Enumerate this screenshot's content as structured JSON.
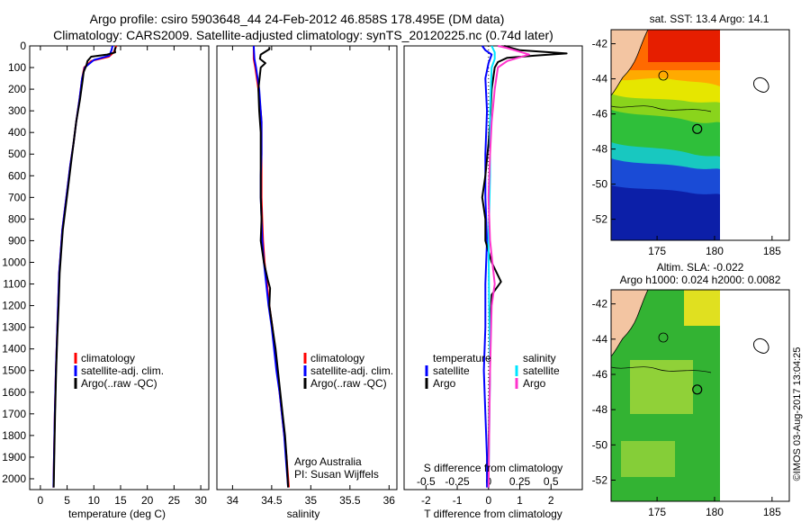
{
  "header": {
    "line1": "Argo profile: csiro 5903648_44 24-Feb-2012 46.858S 178.495E (DM data)",
    "line2": "Climatology: CARS2009. Satellite-adjusted climatology: synTS_20120225.nc (0.74d later)"
  },
  "footer": {
    "credit1": "Argo Australia",
    "credit2": "PI: Susan Wijffels",
    "stamp": "©IMOS 03-Aug-2017 13:04:25"
  },
  "colors": {
    "climatology": "#ff0000",
    "satellite": "#0000ff",
    "argo": "#000000",
    "sal_satellite": "#00e5ff",
    "sal_argo": "#ff33cc"
  },
  "chart_data": [
    {
      "id": "temp",
      "type": "line",
      "xlabel": "temperature (deg C)",
      "ylabel": "",
      "xlim": [
        -2,
        31.5
      ],
      "ylim": [
        2050,
        0
      ],
      "xticks": [
        0,
        5,
        10,
        15,
        20,
        25,
        30
      ],
      "yticks": [
        0,
        100,
        200,
        300,
        400,
        500,
        600,
        700,
        800,
        900,
        1000,
        1100,
        1200,
        1300,
        1400,
        1500,
        1600,
        1700,
        1800,
        1900,
        2000
      ],
      "legend": [
        "climatology",
        "satellite-adj. clim.",
        "Argo(..raw -QC)"
      ],
      "legend_position": "lower-center",
      "series": [
        {
          "name": "climatology",
          "color_key": "climatology",
          "points": [
            [
              14.2,
              0
            ],
            [
              13.7,
              30
            ],
            [
              12.8,
              50
            ],
            [
              9.5,
              70
            ],
            [
              8.2,
              100
            ],
            [
              7.8,
              150
            ],
            [
              7.3,
              250
            ],
            [
              6.7,
              350
            ],
            [
              6.2,
              450
            ],
            [
              5.6,
              550
            ],
            [
              5.1,
              650
            ],
            [
              4.6,
              750
            ],
            [
              4.1,
              850
            ],
            [
              3.8,
              950
            ],
            [
              3.5,
              1050
            ],
            [
              3.3,
              1200
            ],
            [
              3.1,
              1350
            ],
            [
              2.9,
              1500
            ],
            [
              2.7,
              1700
            ],
            [
              2.55,
              1900
            ],
            [
              2.45,
              2040
            ]
          ]
        },
        {
          "name": "satellite-adj. clim.",
          "color_key": "satellite",
          "points": [
            [
              13.5,
              0
            ],
            [
              13.3,
              20
            ],
            [
              12.9,
              45
            ],
            [
              10,
              65
            ],
            [
              8.3,
              100
            ],
            [
              7.8,
              150
            ],
            [
              7.3,
              250
            ],
            [
              6.7,
              350
            ],
            [
              6.2,
              450
            ],
            [
              5.6,
              550
            ],
            [
              5.1,
              650
            ],
            [
              4.6,
              750
            ],
            [
              4.1,
              850
            ],
            [
              3.8,
              950
            ],
            [
              3.5,
              1050
            ],
            [
              3.3,
              1200
            ],
            [
              3.1,
              1350
            ],
            [
              2.9,
              1500
            ],
            [
              2.7,
              1700
            ],
            [
              2.55,
              1900
            ],
            [
              2.45,
              2040
            ]
          ]
        },
        {
          "name": "Argo(..raw -QC)",
          "color_key": "argo",
          "points": [
            [
              14.1,
              5
            ],
            [
              13.9,
              20
            ],
            [
              14,
              30
            ],
            [
              12.5,
              40
            ],
            [
              9.5,
              50
            ],
            [
              8.8,
              70
            ],
            [
              8.6,
              90
            ],
            [
              8.1,
              120
            ],
            [
              7.9,
              160
            ],
            [
              7.4,
              250
            ],
            [
              6.7,
              350
            ],
            [
              6.2,
              450
            ],
            [
              5.7,
              550
            ],
            [
              5.2,
              650
            ],
            [
              4.7,
              750
            ],
            [
              4.2,
              850
            ],
            [
              3.9,
              950
            ],
            [
              3.6,
              1050
            ],
            [
              3.4,
              1200
            ],
            [
              3.15,
              1350
            ],
            [
              2.95,
              1500
            ],
            [
              2.75,
              1700
            ],
            [
              2.6,
              1900
            ],
            [
              2.5,
              2040
            ]
          ]
        }
      ]
    },
    {
      "id": "sal",
      "type": "line",
      "xlabel": "salinity",
      "ylabel": "",
      "xlim": [
        33.8,
        36.1
      ],
      "ylim": [
        2050,
        0
      ],
      "xticks": [
        34,
        34.5,
        35,
        35.5,
        36
      ],
      "xtick_labels": [
        "34",
        "34.5",
        "35",
        "35.5",
        "36"
      ],
      "legend": [
        "climatology",
        "satellite-adj. clim.",
        "Argo(..raw -QC)"
      ],
      "legend_position": "lower-center",
      "series": [
        {
          "name": "climatology",
          "color_key": "climatology",
          "points": [
            [
              34.27,
              0
            ],
            [
              34.27,
              60
            ],
            [
              34.29,
              100
            ],
            [
              34.33,
              200
            ],
            [
              34.36,
              300
            ],
            [
              34.37,
              350
            ],
            [
              34.37,
              400
            ],
            [
              34.37,
              500
            ],
            [
              34.37,
              600
            ],
            [
              34.37,
              700
            ],
            [
              34.38,
              800
            ],
            [
              34.39,
              900
            ],
            [
              34.41,
              1000
            ],
            [
              34.44,
              1100
            ],
            [
              34.47,
              1200
            ],
            [
              34.51,
              1300
            ],
            [
              34.54,
              1400
            ],
            [
              34.57,
              1500
            ],
            [
              34.6,
              1600
            ],
            [
              34.63,
              1700
            ],
            [
              34.66,
              1800
            ],
            [
              34.69,
              1900
            ],
            [
              34.72,
              2040
            ]
          ]
        },
        {
          "name": "satellite-adj. clim.",
          "color_key": "satellite",
          "points": [
            [
              34.27,
              0
            ],
            [
              34.28,
              60
            ],
            [
              34.3,
              100
            ],
            [
              34.34,
              200
            ],
            [
              34.36,
              300
            ],
            [
              34.37,
              350
            ],
            [
              34.37,
              400
            ],
            [
              34.37,
              500
            ],
            [
              34.36,
              600
            ],
            [
              34.36,
              700
            ],
            [
              34.37,
              800
            ],
            [
              34.38,
              900
            ],
            [
              34.4,
              1000
            ],
            [
              34.43,
              1100
            ],
            [
              34.46,
              1200
            ],
            [
              34.5,
              1300
            ],
            [
              34.53,
              1400
            ],
            [
              34.56,
              1500
            ],
            [
              34.6,
              1600
            ],
            [
              34.63,
              1700
            ],
            [
              34.66,
              1800
            ],
            [
              34.68,
              1900
            ],
            [
              34.71,
              2040
            ]
          ]
        },
        {
          "name": "Argo(..raw -QC)",
          "color_key": "argo",
          "points": [
            [
              34.47,
              5
            ],
            [
              34.47,
              15
            ],
            [
              34.36,
              40
            ],
            [
              34.35,
              60
            ],
            [
              34.42,
              80
            ],
            [
              34.36,
              100
            ],
            [
              34.33,
              200
            ],
            [
              34.34,
              300
            ],
            [
              34.36,
              400
            ],
            [
              34.36,
              500
            ],
            [
              34.36,
              600
            ],
            [
              34.36,
              700
            ],
            [
              34.37,
              800
            ],
            [
              34.36,
              900
            ],
            [
              34.4,
              1000
            ],
            [
              34.45,
              1080
            ],
            [
              34.48,
              1120
            ],
            [
              34.47,
              1200
            ],
            [
              34.51,
              1300
            ],
            [
              34.55,
              1400
            ],
            [
              34.58,
              1500
            ],
            [
              34.61,
              1600
            ],
            [
              34.64,
              1700
            ],
            [
              34.67,
              1800
            ],
            [
              34.69,
              1900
            ],
            [
              34.71,
              2040
            ]
          ]
        }
      ]
    },
    {
      "id": "diff",
      "type": "line",
      "xlabel": "T difference from climatology",
      "xlabel_top": "S difference from climatology",
      "xlim": [
        -2.7,
        3
      ],
      "ylim": [
        2050,
        0
      ],
      "xticks": [
        -2,
        -1,
        0,
        1,
        2
      ],
      "xticks_s": [
        "-0.5",
        "-0.25",
        "0",
        "0.25",
        "0.5"
      ],
      "xticks_s_positions": [
        -2,
        -1,
        0,
        1,
        2
      ],
      "legend_temperature": [
        "temperature",
        "satellite",
        "Argo"
      ],
      "legend_salinity": [
        "salinity",
        "satellite",
        "Argo"
      ],
      "legend_position": "lower-center",
      "series": [
        {
          "name": "satellite",
          "color_key": "satellite",
          "points": [
            [
              -0.2,
              0
            ],
            [
              -0.1,
              20
            ],
            [
              0.1,
              40
            ],
            [
              0,
              80
            ],
            [
              -0.1,
              150
            ],
            [
              -0.05,
              300
            ],
            [
              -0.1,
              500
            ],
            [
              -0.1,
              700
            ],
            [
              -0.05,
              900
            ],
            [
              -0.1,
              1100
            ],
            [
              -0.1,
              1300
            ],
            [
              -0.15,
              1500
            ],
            [
              -0.1,
              1700
            ],
            [
              -0.05,
              1900
            ],
            [
              -0.05,
              2040
            ]
          ]
        },
        {
          "name": "Argo",
          "color_key": "argo",
          "points": [
            [
              0.5,
              0
            ],
            [
              1,
              20
            ],
            [
              2.5,
              35
            ],
            [
              1.5,
              45
            ],
            [
              0.6,
              55
            ],
            [
              0.3,
              75
            ],
            [
              0.2,
              100
            ],
            [
              0.1,
              200
            ],
            [
              0.05,
              350
            ],
            [
              0,
              450
            ],
            [
              -0.1,
              600
            ],
            [
              -0.2,
              700
            ],
            [
              -0.1,
              800
            ],
            [
              -0.1,
              900
            ],
            [
              0.1,
              1000
            ],
            [
              0.4,
              1090
            ],
            [
              0.1,
              1150
            ],
            [
              0.05,
              1300
            ],
            [
              0.05,
              1500
            ],
            [
              0.02,
              1700
            ],
            [
              0,
              1900
            ],
            [
              0,
              2040
            ]
          ]
        },
        {
          "name": "satellite",
          "color_key": "sal_satellite",
          "points": [
            [
              0.1,
              0
            ],
            [
              0.2,
              30
            ],
            [
              0.2,
              60
            ],
            [
              0.1,
              100
            ],
            [
              0.05,
              300
            ],
            [
              0.05,
              600
            ],
            [
              0,
              900
            ],
            [
              0.02,
              1200
            ],
            [
              0.05,
              1500
            ],
            [
              0.02,
              1800
            ],
            [
              0,
              2040
            ]
          ]
        },
        {
          "name": "Argo",
          "color_key": "sal_argo",
          "points": [
            [
              0.3,
              0
            ],
            [
              0.6,
              10
            ],
            [
              1.3,
              40
            ],
            [
              0.6,
              70
            ],
            [
              0.3,
              100
            ],
            [
              0.2,
              200
            ],
            [
              0.1,
              350
            ],
            [
              0.05,
              500
            ],
            [
              0,
              700
            ],
            [
              0.05,
              900
            ],
            [
              0.2,
              1100
            ],
            [
              0.1,
              1200
            ],
            [
              0.05,
              1500
            ],
            [
              0.02,
              1800
            ],
            [
              0,
              2040
            ]
          ]
        }
      ]
    },
    {
      "id": "sst_map",
      "type": "heatmap",
      "title": "sat. SST: 13.4  Argo: 14.1",
      "xlim": [
        171,
        186.5
      ],
      "ylim": [
        -53.2,
        -41.2
      ],
      "xticks": [
        175,
        180,
        185
      ],
      "yticks": [
        -42,
        -44,
        -46,
        -48,
        -50,
        -52
      ],
      "argo_position": [
        178.495,
        -46.858
      ]
    },
    {
      "id": "sla_map",
      "type": "heatmap",
      "title1": "Altim. SLA: -0.022",
      "title2": "Argo h1000: 0.024  h2000: 0.0082",
      "xlim": [
        171,
        186.5
      ],
      "ylim": [
        -53.2,
        -41.2
      ],
      "xticks": [
        175,
        180,
        185
      ],
      "yticks": [
        -42,
        -44,
        -46,
        -48,
        -50,
        -52
      ],
      "argo_position": [
        178.495,
        -46.858
      ]
    }
  ]
}
